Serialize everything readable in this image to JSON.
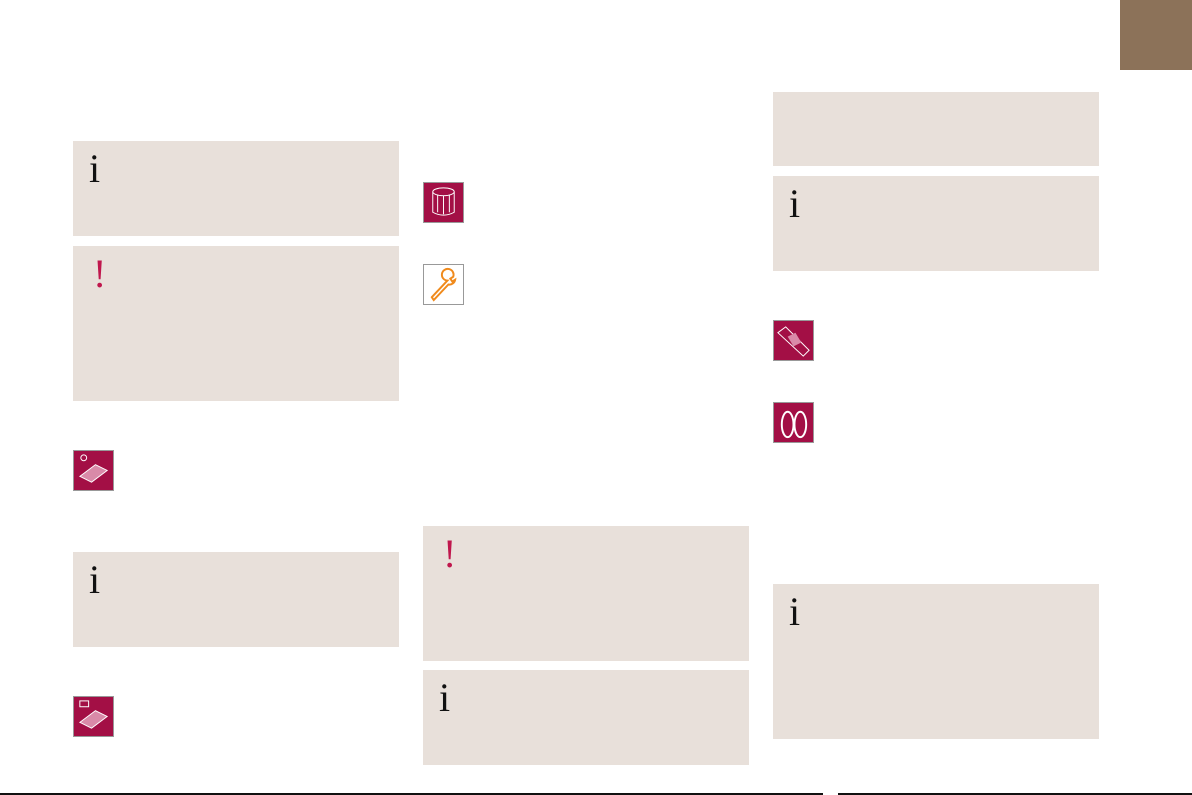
{
  "glyphs": {
    "info": "i",
    "warning": "!"
  },
  "colors": {
    "panel": "#e8e0da",
    "accent": "#a30f45",
    "warning": "#c0174d",
    "tab": "#8c7259",
    "wrench": "#f08a1c"
  },
  "icons": [
    "air-filter-icon",
    "oil-filter-icon",
    "wrench-icon",
    "wiper-blade-icon",
    "brake-pads-icon",
    "engine-air-filter-icon"
  ]
}
